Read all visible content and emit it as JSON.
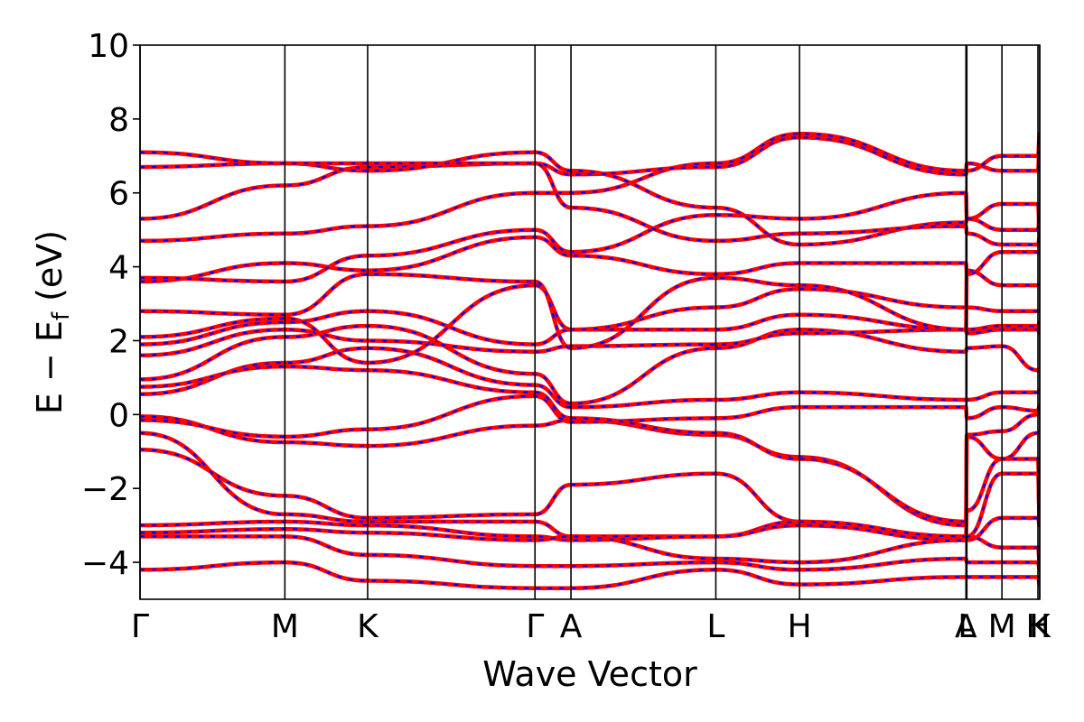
{
  "chart_data": {
    "type": "line",
    "xlabel": "Wave Vector",
    "ylabel_main": "E − E",
    "ylabel_sub": "f",
    "ylabel_unit": " (eV)",
    "ylim": [
      -5,
      10
    ],
    "yticks": [
      "−4",
      "−2",
      "0",
      "2",
      "4",
      "6",
      "8",
      "10"
    ],
    "ytick_values": [
      -4,
      -2,
      0,
      2,
      4,
      6,
      8,
      10
    ],
    "xlim": [
      0,
      1
    ],
    "kpoints": [
      {
        "label": "Γ",
        "x": 0.0
      },
      {
        "label": "M",
        "x": 0.161
      },
      {
        "label": "K",
        "x": 0.253
      },
      {
        "label": "Γ",
        "x": 0.439
      },
      {
        "label": "A",
        "x": 0.479
      },
      {
        "label": "L",
        "x": 0.64
      },
      {
        "label": "H",
        "x": 0.733
      },
      {
        "label": "A",
        "x": 0.918
      },
      {
        "label": "L",
        "x": 0.919
      },
      {
        "label": "M",
        "x": 0.958
      },
      {
        "label": "H",
        "x": 0.998
      },
      {
        "label": "K",
        "x": 1.0
      }
    ],
    "colors": {
      "series_a": "#ff0000",
      "series_b": "#0000ff"
    },
    "bands": [
      [
        -0.05,
        -0.75,
        -0.85,
        -0.3,
        -0.15,
        -0.55,
        -1.15,
        -3.0,
        -0.55,
        -0.45,
        0.0,
        0.1
      ],
      [
        -0.15,
        -0.6,
        -0.4,
        0.5,
        -0.2,
        -0.1,
        0.2,
        0.2,
        -0.1,
        0.2,
        0.1,
        0.25
      ],
      [
        0.55,
        1.4,
        1.8,
        0.8,
        0.2,
        0.4,
        0.6,
        0.4,
        0.4,
        0.6,
        0.6,
        0.65
      ],
      [
        0.75,
        1.3,
        1.2,
        0.6,
        -0.1,
        -0.5,
        -1.2,
        -2.9,
        -0.6,
        -1.2,
        -0.5,
        -0.5
      ],
      [
        0.95,
        2.1,
        2.4,
        1.1,
        0.3,
        1.8,
        2.3,
        1.7,
        1.8,
        1.85,
        1.2,
        1.2
      ],
      [
        1.6,
        2.3,
        2.0,
        1.7,
        1.85,
        1.9,
        2.2,
        2.3,
        2.2,
        2.3,
        2.3,
        2.2
      ],
      [
        1.9,
        2.5,
        2.8,
        1.9,
        2.3,
        2.3,
        2.7,
        2.3,
        2.3,
        2.4,
        2.4,
        2.5
      ],
      [
        2.1,
        2.6,
        1.4,
        3.5,
        2.3,
        2.9,
        3.4,
        2.9,
        2.9,
        2.8,
        2.8,
        2.8
      ],
      [
        2.8,
        2.7,
        3.8,
        3.6,
        1.8,
        3.7,
        3.5,
        2.3,
        3.9,
        3.5,
        3.5,
        3.5
      ],
      [
        3.6,
        4.1,
        3.9,
        4.8,
        4.3,
        3.8,
        4.1,
        4.1,
        3.8,
        4.4,
        4.4,
        4.4
      ],
      [
        3.7,
        3.6,
        4.3,
        5.0,
        4.4,
        5.4,
        5.3,
        6.0,
        5.3,
        5.7,
        5.7,
        4.9
      ],
      [
        4.7,
        4.9,
        5.1,
        6.0,
        6.0,
        6.8,
        7.6,
        6.6,
        6.8,
        6.6,
        6.6,
        7.6
      ],
      [
        5.3,
        6.2,
        6.7,
        6.8,
        6.5,
        6.7,
        7.5,
        6.5,
        6.6,
        7.0,
        7.0,
        7.6
      ],
      [
        6.7,
        6.8,
        6.6,
        7.1,
        6.6,
        5.6,
        4.6,
        5.2,
        5.3,
        5.0,
        5.0,
        5.4
      ],
      [
        7.1,
        6.8,
        6.8,
        6.8,
        5.6,
        4.7,
        4.9,
        5.1,
        4.9,
        4.6,
        4.6,
        4.8
      ],
      [
        -0.95,
        -2.2,
        -2.8,
        -2.7,
        -1.9,
        -1.6,
        -2.9,
        -3.3,
        -3.3,
        -1.6,
        -1.6,
        -2.9
      ],
      [
        -0.5,
        -2.7,
        -2.9,
        -2.9,
        -3.3,
        -3.3,
        -2.9,
        -3.3,
        -2.6,
        -1.2,
        -1.2,
        -2.9
      ],
      [
        -3.0,
        -2.9,
        -3.0,
        -3.3,
        -3.4,
        -3.3,
        -3.0,
        -3.4,
        -3.4,
        -2.8,
        -2.8,
        -3.0
      ],
      [
        -3.2,
        -3.1,
        -3.2,
        -3.4,
        -3.3,
        -3.9,
        -4.0,
        -3.4,
        -3.3,
        -3.6,
        -3.6,
        -4.0
      ],
      [
        -3.3,
        -3.3,
        -3.8,
        -4.1,
        -4.1,
        -4.0,
        -4.2,
        -3.9,
        -4.0,
        -4.0,
        -4.0,
        -4.2
      ],
      [
        -4.2,
        -4.0,
        -4.5,
        -4.7,
        -4.7,
        -4.2,
        -4.6,
        -4.4,
        -4.4,
        -4.4,
        -4.4,
        -4.6
      ]
    ]
  }
}
